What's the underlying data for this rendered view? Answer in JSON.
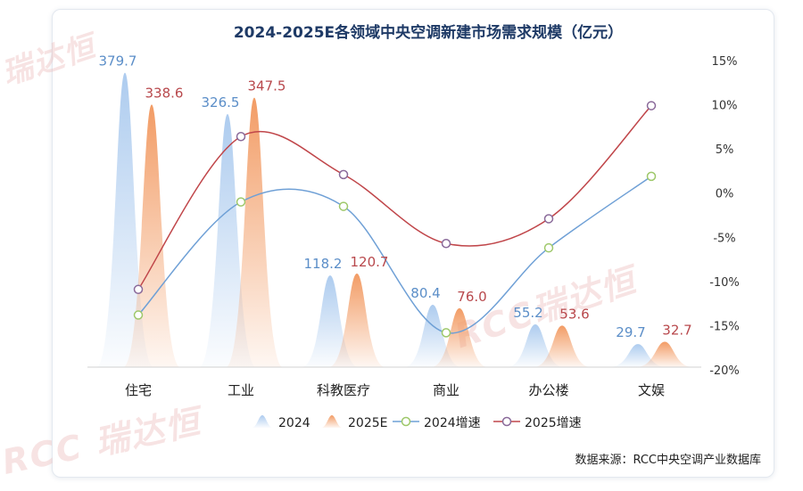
{
  "chart_data": {
    "type": "bar",
    "title": "2024-2025E各领域中央空调新建市场需求规模（亿元）",
    "categories": [
      "住宅",
      "工业",
      "科教医疗",
      "商业",
      "办公楼",
      "文娱"
    ],
    "series": [
      {
        "name": "2024",
        "kind": "bar",
        "values": [
          379.7,
          326.5,
          118.2,
          80.4,
          55.2,
          29.7
        ],
        "color": "#a9c9ee"
      },
      {
        "name": "2025E",
        "kind": "bar",
        "values": [
          338.6,
          347.5,
          120.7,
          76.0,
          53.6,
          32.7
        ],
        "color": "#f29a62"
      },
      {
        "name": "2024增速",
        "kind": "line",
        "axis": "right",
        "values": [
          -13.8,
          -1.0,
          -1.5,
          -15.8,
          -6.2,
          1.9
        ],
        "color": "#6fa0d6",
        "marker": "#9ec86a"
      },
      {
        "name": "2025增速",
        "kind": "line",
        "axis": "right",
        "values": [
          -10.9,
          6.4,
          2.1,
          -5.7,
          -2.9,
          9.9
        ],
        "color": "#c0464a",
        "marker": "#8a6a9a"
      }
    ],
    "data_labels_2024": [
      "379.7",
      "326.5",
      "118.2",
      "80.4",
      "55.2",
      "29.7"
    ],
    "data_labels_2025": [
      "338.6",
      "347.5",
      "120.7",
      "76.0",
      "53.6",
      "32.7"
    ],
    "left_ylim": [
      0,
      400
    ],
    "right_ylim": [
      -20,
      15
    ],
    "right_ticks": [
      "15%",
      "10%",
      "5%",
      "0%",
      "-5%",
      "-10%",
      "-15%",
      "-20%"
    ],
    "right_tick_values": [
      15,
      10,
      5,
      0,
      -5,
      -10,
      -15,
      -20
    ],
    "legend_position": "bottom",
    "grid": false
  },
  "source": "数据来源：RCC中央空调产业数据库",
  "watermark": "RCC 瑞达恒"
}
